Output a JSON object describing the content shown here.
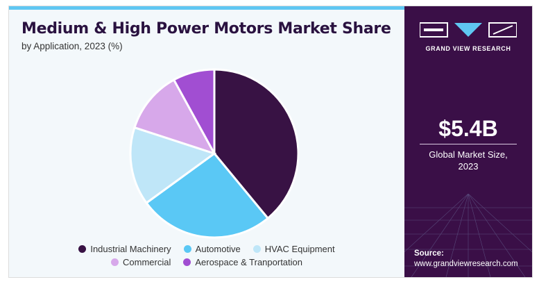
{
  "header": {
    "title": "Medium & High Power Motors Market Share",
    "subtitle": "by Application, 2023 (%)"
  },
  "brand": {
    "name": "GRAND VIEW RESEARCH"
  },
  "stat": {
    "value": "$5.4B",
    "label_line1": "Global Market Size,",
    "label_line2": "2023"
  },
  "source": {
    "label": "Source:",
    "url": "www.grandviewresearch.com"
  },
  "colors": {
    "accent_bar": "#5fc7f2",
    "side_panel": "#3a0f47"
  },
  "chart_data": {
    "type": "pie",
    "categories": [
      "Industrial Machinery",
      "Automotive",
      "HVAC Equipment",
      "Commercial",
      "Aerospace & Tranportation"
    ],
    "values": [
      39,
      26,
      15,
      12,
      8
    ],
    "colors": [
      "#381244",
      "#5ac8f5",
      "#bfe6f8",
      "#d7a8ea",
      "#a14ed2"
    ],
    "start_angle_deg": 0,
    "direction": "clockwise",
    "legend_position": "bottom"
  }
}
